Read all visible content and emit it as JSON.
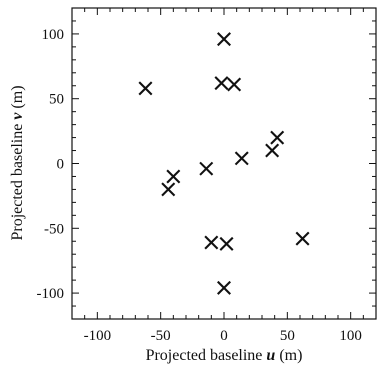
{
  "chart_data": {
    "type": "scatter",
    "xlabel": {
      "prefix": "Projected baseline ",
      "variable": "u",
      "suffix": " (m)"
    },
    "ylabel": {
      "prefix": "Projected baseline ",
      "variable": "v",
      "suffix": " (m)"
    },
    "xlim": [
      -120,
      120
    ],
    "ylim": [
      -120,
      120
    ],
    "x_ticks": [
      -100,
      -50,
      0,
      50,
      100
    ],
    "y_ticks": [
      -100,
      -50,
      0,
      50,
      100
    ],
    "x_tick_labels": [
      "-100",
      "-50",
      "0",
      "50",
      "100"
    ],
    "y_tick_labels": [
      "-100",
      "-50",
      "0",
      "50",
      "100"
    ],
    "grid": false,
    "marker": "x",
    "series": [
      {
        "values": [
          {
            "x": 0,
            "y": 96
          },
          {
            "x": -62,
            "y": 58
          },
          {
            "x": -2,
            "y": 62
          },
          {
            "x": 8,
            "y": 61
          },
          {
            "x": 42,
            "y": 20
          },
          {
            "x": 38,
            "y": 10
          },
          {
            "x": 14,
            "y": 4
          },
          {
            "x": -14,
            "y": -4
          },
          {
            "x": -40,
            "y": -10
          },
          {
            "x": -44,
            "y": -20
          },
          {
            "x": -10,
            "y": -61
          },
          {
            "x": 2,
            "y": -62
          },
          {
            "x": 62,
            "y": -58
          },
          {
            "x": 0,
            "y": -96
          }
        ]
      }
    ]
  }
}
